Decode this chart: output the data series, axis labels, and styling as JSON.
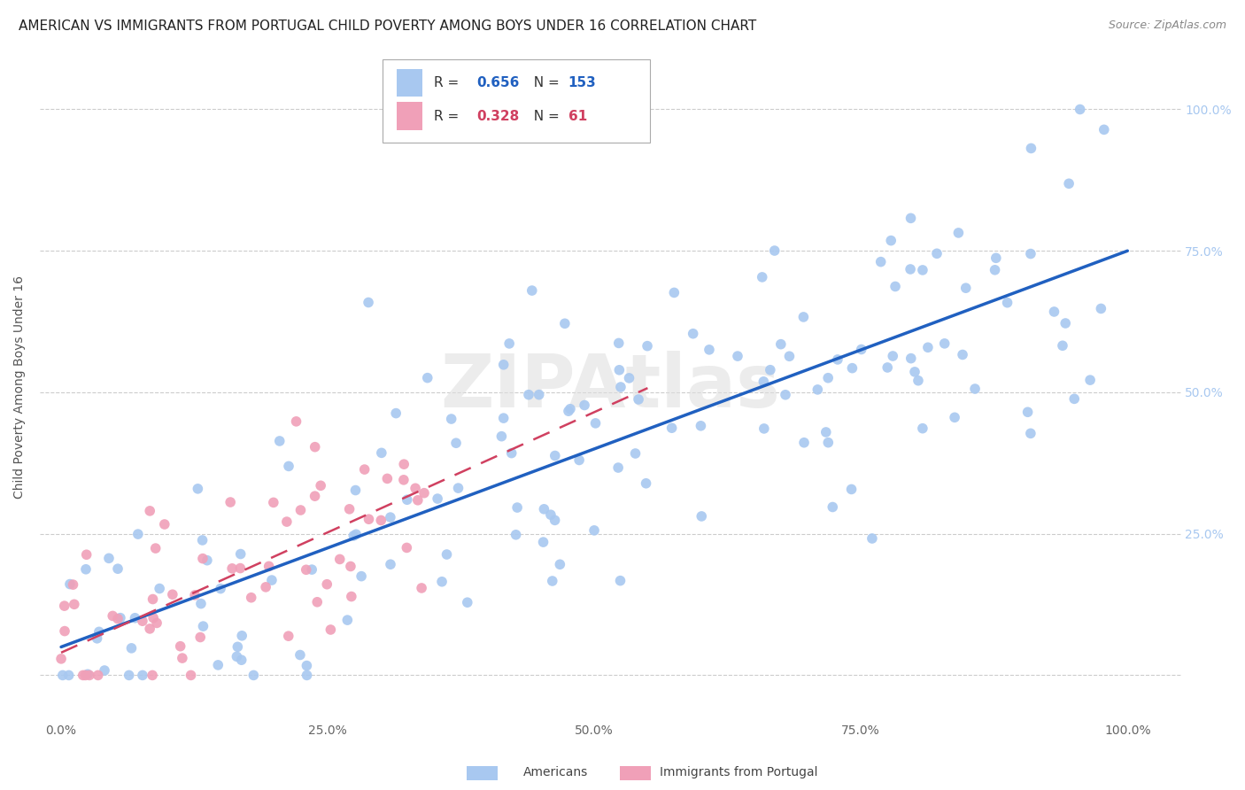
{
  "title": "AMERICAN VS IMMIGRANTS FROM PORTUGAL CHILD POVERTY AMONG BOYS UNDER 16 CORRELATION CHART",
  "source": "Source: ZipAtlas.com",
  "ylabel": "Child Poverty Among Boys Under 16",
  "american_R": 0.656,
  "american_N": 153,
  "portugal_R": 0.328,
  "portugal_N": 61,
  "american_color": "#a8c8f0",
  "portugal_color": "#f0a0b8",
  "american_line_color": "#2060c0",
  "portugal_line_color": "#d04060",
  "background_color": "#ffffff",
  "grid_color": "#cccccc",
  "title_fontsize": 11,
  "axis_label_fontsize": 10,
  "tick_fontsize": 10,
  "xlim": [
    -0.02,
    1.05
  ],
  "ylim": [
    -0.08,
    1.1
  ]
}
